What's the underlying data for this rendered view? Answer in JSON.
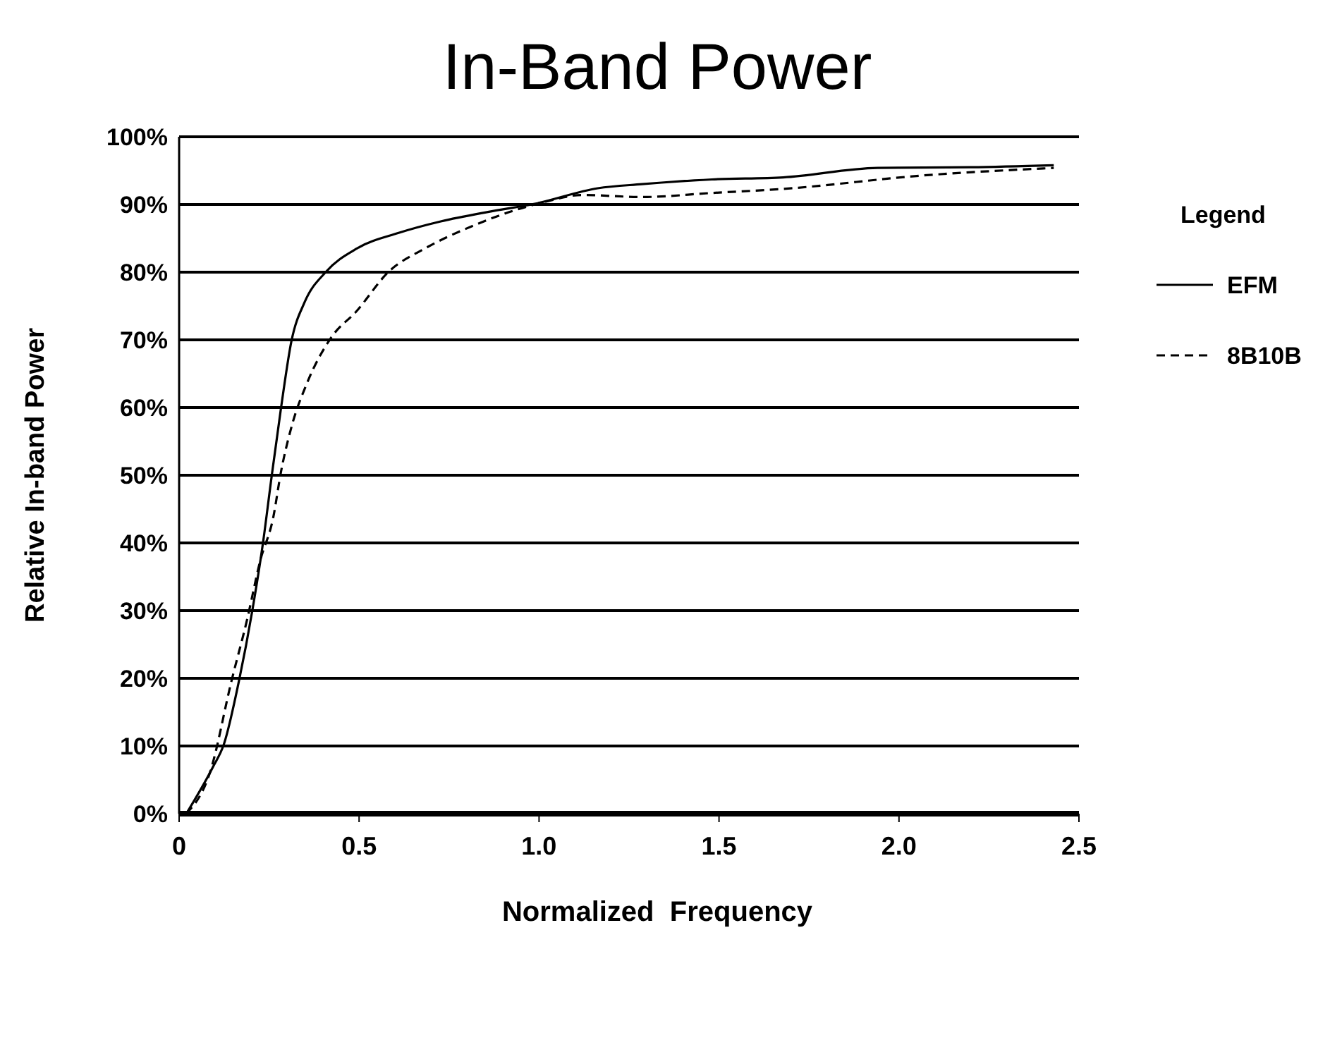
{
  "chart_data": {
    "type": "line",
    "title": "In-Band Power",
    "xlabel": "Normalized  Frequency",
    "ylabel": "Relative In-band Power",
    "legend_title": "Legend",
    "legend": "right",
    "grid": "y",
    "xlim": [
      0,
      2.5
    ],
    "ylim": [
      0,
      100
    ],
    "xticks": [
      {
        "value": 0,
        "label": "0"
      },
      0.5,
      {
        "value": 1,
        "label": "1.0"
      },
      1.5,
      {
        "value": 2,
        "label": "2.0"
      },
      2.5
    ],
    "yticks": [
      {
        "value": 0,
        "label": "0%"
      },
      {
        "value": 10,
        "label": "10%"
      },
      {
        "value": 20,
        "label": "20%"
      },
      {
        "value": 30,
        "label": "30%"
      },
      {
        "value": 40,
        "label": "40%"
      },
      {
        "value": 50,
        "label": "50%"
      },
      {
        "value": 60,
        "label": "60%"
      },
      {
        "value": 70,
        "label": "70%"
      },
      {
        "value": 80,
        "label": "80%"
      },
      {
        "value": 90,
        "label": "90%"
      },
      {
        "value": 100,
        "label": "100%"
      }
    ],
    "series": [
      {
        "name": "EFM",
        "color": "#000000",
        "line_style": "solid",
        "x": [
          0.02,
          0.094,
          0.124,
          0.167,
          0.203,
          0.233,
          0.257,
          0.283,
          0.312,
          0.349,
          0.407,
          0.494,
          0.61,
          0.727,
          0.858,
          0.988,
          1.163,
          1.286,
          1.48,
          1.678,
          1.94,
          2.2,
          2.43
        ],
        "values": [
          0,
          6.9,
          10.2,
          19.8,
          29.9,
          40,
          49.8,
          59.9,
          69.8,
          75.6,
          80,
          83.5,
          85.8,
          87.5,
          88.9,
          90.1,
          92.4,
          93,
          93.7,
          94,
          95.4,
          95.5,
          95.8
        ]
      },
      {
        "name": "8B10B",
        "color": "#000000",
        "line_style": "dashed",
        "x": [
          0.02,
          0.087,
          0.145,
          0.189,
          0.225,
          0.262,
          0.283,
          0.312,
          0.356,
          0.422,
          0.494,
          0.581,
          0.683,
          0.814,
          0.93,
          1.017,
          1.12,
          1.286,
          1.48,
          1.678,
          2.07,
          2.43
        ],
        "values": [
          0,
          6.3,
          19.5,
          28.7,
          37.3,
          43.9,
          50.5,
          57.1,
          63.7,
          70.3,
          74.3,
          80,
          83.5,
          86.8,
          89.1,
          90.4,
          91.4,
          91.1,
          91.7,
          92.3,
          94.3,
          95.4
        ]
      }
    ]
  }
}
